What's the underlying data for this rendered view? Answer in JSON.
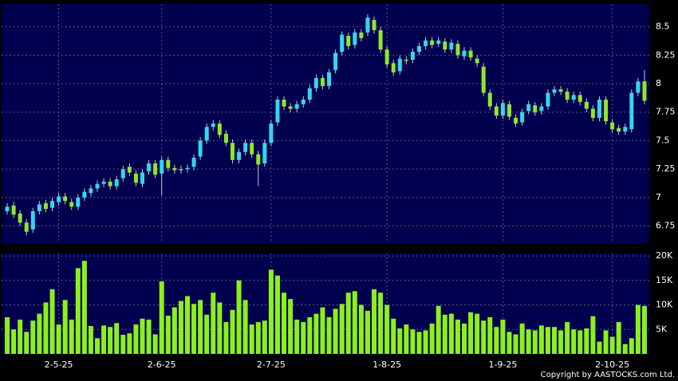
{
  "chart_data": {
    "type": "candlestick",
    "categories": [
      null,
      null,
      null,
      null,
      null,
      null,
      null,
      null,
      "2-5-25",
      null,
      null,
      null,
      null,
      null,
      null,
      null,
      null,
      null,
      null,
      null,
      null,
      null,
      null,
      null,
      "2-6-25",
      null,
      null,
      null,
      null,
      null,
      null,
      null,
      null,
      null,
      null,
      null,
      null,
      null,
      null,
      null,
      null,
      "2-7-25",
      null,
      null,
      null,
      null,
      null,
      null,
      null,
      null,
      null,
      null,
      null,
      null,
      null,
      null,
      null,
      null,
      null,
      "1-8-25",
      null,
      null,
      null,
      null,
      null,
      null,
      null,
      null,
      null,
      null,
      null,
      null,
      null,
      null,
      null,
      null,
      null,
      "1-9-25",
      null,
      null,
      null,
      null,
      null,
      null,
      null,
      null,
      null,
      null,
      null,
      null,
      null,
      null,
      null,
      null,
      "2-10-25",
      null,
      null,
      null,
      null,
      null
    ],
    "open": [
      6.88,
      6.93,
      6.86,
      6.78,
      6.72,
      6.88,
      6.95,
      6.91,
      6.96,
      7.01,
      6.96,
      6.92,
      7.0,
      7.04,
      7.08,
      7.12,
      7.14,
      7.1,
      7.17,
      7.27,
      7.21,
      7.12,
      7.23,
      7.3,
      7.21,
      7.33,
      7.26,
      7.24,
      7.25,
      7.27,
      7.36,
      7.5,
      7.62,
      7.65,
      7.56,
      7.48,
      7.33,
      7.4,
      7.48,
      7.38,
      7.3,
      7.48,
      7.66,
      7.86,
      7.8,
      7.78,
      7.82,
      7.86,
      7.96,
      8.05,
      7.98,
      8.12,
      8.28,
      8.42,
      8.34,
      8.45,
      8.45,
      8.56,
      8.47,
      8.3,
      8.18,
      8.11,
      8.21,
      8.21,
      8.28,
      8.33,
      8.38,
      8.35,
      8.37,
      8.3,
      8.35,
      8.24,
      8.29,
      8.22,
      8.15,
      7.92,
      7.8,
      7.72,
      7.82,
      7.7,
      7.66,
      7.76,
      7.81,
      7.76,
      7.8,
      7.92,
      7.95,
      7.93,
      7.86,
      7.9,
      7.84,
      7.78,
      7.7,
      7.86,
      7.66,
      7.61,
      7.58,
      7.6,
      7.92,
      8.02
    ],
    "high": [
      6.95,
      6.96,
      6.89,
      6.81,
      6.91,
      6.97,
      6.98,
      7.0,
      7.04,
      7.04,
      6.99,
      7.03,
      7.08,
      7.11,
      7.15,
      7.17,
      7.17,
      7.19,
      7.28,
      7.3,
      7.24,
      7.25,
      7.33,
      7.33,
      7.36,
      7.36,
      7.29,
      7.28,
      7.29,
      7.38,
      7.53,
      7.65,
      7.68,
      7.68,
      7.59,
      7.51,
      7.43,
      7.51,
      7.51,
      7.41,
      7.51,
      7.68,
      7.89,
      7.89,
      7.83,
      7.85,
      7.89,
      7.99,
      8.08,
      8.08,
      8.13,
      8.3,
      8.46,
      8.45,
      8.48,
      8.48,
      8.61,
      8.59,
      8.5,
      8.33,
      8.21,
      8.25,
      8.24,
      8.31,
      8.36,
      8.41,
      8.41,
      8.41,
      8.4,
      8.39,
      8.38,
      8.32,
      8.32,
      8.25,
      8.18,
      7.95,
      7.83,
      7.86,
      7.85,
      7.73,
      7.78,
      7.85,
      7.84,
      7.83,
      7.95,
      7.98,
      7.98,
      7.96,
      7.93,
      7.93,
      7.87,
      7.81,
      7.89,
      7.89,
      7.69,
      7.64,
      7.65,
      7.95,
      8.05,
      8.12
    ],
    "low": [
      6.85,
      6.82,
      6.75,
      6.67,
      6.69,
      6.85,
      6.87,
      6.88,
      6.93,
      6.94,
      6.89,
      6.89,
      6.97,
      7.01,
      7.05,
      7.09,
      7.07,
      7.07,
      7.14,
      7.19,
      7.1,
      7.09,
      7.2,
      7.17,
      7.02,
      7.23,
      7.21,
      7.21,
      7.22,
      7.24,
      7.33,
      7.47,
      7.59,
      7.52,
      7.45,
      7.3,
      7.3,
      7.37,
      7.35,
      7.1,
      7.27,
      7.45,
      7.63,
      7.77,
      7.75,
      7.75,
      7.79,
      7.83,
      7.93,
      7.95,
      7.95,
      8.09,
      8.25,
      8.3,
      8.31,
      8.37,
      8.42,
      8.44,
      8.27,
      8.14,
      8.07,
      8.08,
      8.17,
      8.18,
      8.25,
      8.3,
      8.31,
      8.32,
      8.27,
      8.27,
      8.22,
      8.21,
      8.2,
      8.15,
      7.89,
      7.77,
      7.69,
      7.69,
      7.68,
      7.62,
      7.63,
      7.73,
      7.72,
      7.73,
      7.77,
      7.89,
      7.9,
      7.83,
      7.83,
      7.81,
      7.75,
      7.67,
      7.67,
      7.64,
      7.57,
      7.55,
      7.55,
      7.57,
      7.89,
      7.82
    ],
    "close": [
      6.92,
      6.85,
      6.78,
      6.7,
      6.88,
      6.94,
      6.9,
      6.97,
      7.01,
      6.97,
      6.92,
      7.0,
      7.05,
      7.08,
      7.12,
      7.14,
      7.1,
      7.16,
      7.25,
      7.22,
      7.13,
      7.22,
      7.3,
      7.2,
      7.33,
      7.26,
      7.24,
      7.25,
      7.26,
      7.35,
      7.5,
      7.62,
      7.65,
      7.55,
      7.48,
      7.33,
      7.4,
      7.48,
      7.38,
      7.29,
      7.48,
      7.65,
      7.86,
      7.8,
      7.78,
      7.82,
      7.86,
      7.96,
      8.05,
      7.98,
      8.1,
      8.27,
      8.43,
      8.33,
      8.45,
      8.4,
      8.58,
      8.47,
      8.3,
      8.17,
      8.1,
      8.22,
      8.2,
      8.28,
      8.33,
      8.38,
      8.34,
      8.38,
      8.3,
      8.36,
      8.25,
      8.29,
      8.23,
      8.18,
      7.92,
      7.8,
      7.72,
      7.83,
      7.71,
      7.65,
      7.75,
      7.82,
      7.75,
      7.8,
      7.92,
      7.95,
      7.93,
      7.86,
      7.9,
      7.84,
      7.78,
      7.7,
      7.86,
      7.67,
      7.6,
      7.58,
      7.62,
      7.92,
      8.02,
      7.85
    ],
    "volume": [
      7500,
      5000,
      7000,
      4500,
      6800,
      8200,
      10500,
      13200,
      6000,
      11000,
      7000,
      17500,
      19000,
      5700,
      3200,
      5800,
      5500,
      6300,
      3900,
      4200,
      6000,
      7200,
      7000,
      4000,
      14800,
      7800,
      9500,
      10800,
      11800,
      10200,
      11000,
      8000,
      12500,
      10500,
      6500,
      9000,
      15000,
      11000,
      6000,
      6500,
      6800,
      17200,
      16000,
      12500,
      11200,
      7000,
      6500,
      7500,
      8200,
      9500,
      7500,
      9200,
      10200,
      12500,
      12800,
      10000,
      8800,
      13200,
      12500,
      10000,
      7200,
      5200,
      6000,
      5000,
      4500,
      4800,
      6200,
      9800,
      8000,
      8200,
      7000,
      6200,
      8500,
      8200,
      6800,
      7500,
      5500,
      7000,
      4500,
      4000,
      6200,
      5000,
      4800,
      5800,
      5500,
      5500,
      4800,
      6500,
      5000,
      4800,
      5200,
      7700,
      2500,
      4800,
      3500,
      6500,
      2000,
      3200,
      10000,
      9800
    ],
    "ylim": [
      6.6,
      8.7
    ],
    "yticks": [
      6.75,
      7,
      7.25,
      7.5,
      7.75,
      8,
      8.25,
      8.5
    ],
    "volume_ylim": [
      0,
      20500
    ],
    "volume_yticks": [
      {
        "value": 5000,
        "label": "5K"
      },
      {
        "value": 10000,
        "label": "10K"
      },
      {
        "value": 15000,
        "label": "15K"
      },
      {
        "value": 20000,
        "label": "20K"
      }
    ],
    "up_color": "#33d6f0",
    "down_color": "#8ee62e",
    "volume_color": "#8cf01c",
    "grid": true
  },
  "footer": {
    "copyright": "Copyright by AASTOCKS.com Ltd."
  }
}
